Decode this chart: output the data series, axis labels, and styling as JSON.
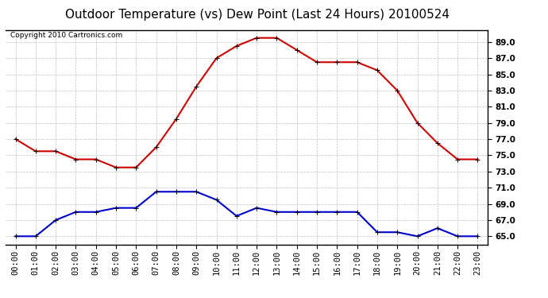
{
  "title": "Outdoor Temperature (vs) Dew Point (Last 24 Hours) 20100524",
  "copyright": "Copyright 2010 Cartronics.com",
  "hours": [
    "00:00",
    "01:00",
    "02:00",
    "03:00",
    "04:00",
    "05:00",
    "06:00",
    "07:00",
    "08:00",
    "09:00",
    "10:00",
    "11:00",
    "12:00",
    "13:00",
    "14:00",
    "15:00",
    "16:00",
    "17:00",
    "18:00",
    "19:00",
    "20:00",
    "21:00",
    "22:00",
    "23:00"
  ],
  "temp": [
    77.0,
    75.5,
    75.5,
    74.5,
    74.5,
    73.5,
    73.5,
    76.0,
    79.5,
    83.5,
    87.0,
    88.5,
    89.5,
    89.5,
    88.0,
    86.5,
    86.5,
    86.5,
    85.5,
    83.0,
    79.0,
    76.5,
    74.5,
    74.5
  ],
  "dewpoint": [
    65.0,
    65.0,
    67.0,
    68.0,
    68.0,
    68.5,
    68.5,
    70.5,
    70.5,
    70.5,
    69.5,
    67.5,
    68.5,
    68.0,
    68.0,
    68.0,
    68.0,
    68.0,
    65.5,
    65.5,
    65.0,
    66.0,
    65.0,
    65.0
  ],
  "temp_color": "#cc0000",
  "dew_color": "#0000cc",
  "background_color": "#ffffff",
  "grid_color": "#c0c0c0",
  "ylim": [
    64.0,
    90.5
  ],
  "yticks": [
    65.0,
    67.0,
    69.0,
    71.0,
    73.0,
    75.0,
    77.0,
    79.0,
    81.0,
    83.0,
    85.0,
    87.0,
    89.0
  ],
  "title_fontsize": 11,
  "copyright_fontsize": 6.5,
  "tick_fontsize": 7.5,
  "marker": "+",
  "markersize": 5,
  "linewidth": 1.5
}
